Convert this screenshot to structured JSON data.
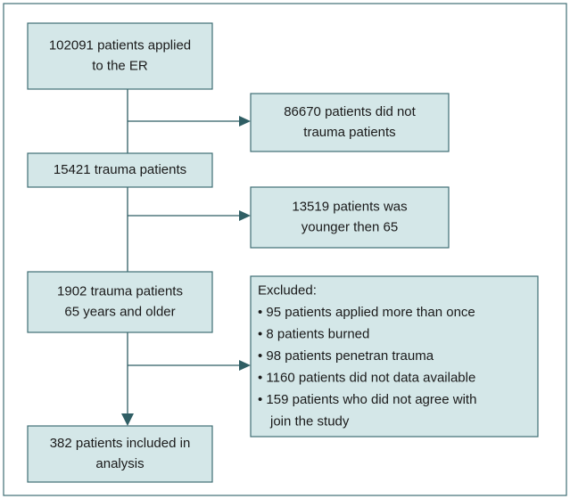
{
  "nodes": [
    {
      "lines": [
        "102091 patients applied",
        "to the ER"
      ]
    },
    {
      "lines": [
        "86670 patients did not",
        "trauma patients"
      ]
    },
    {
      "lines": [
        "15421 trauma patients"
      ]
    },
    {
      "lines": [
        "13519 patients was",
        "younger then 65"
      ]
    },
    {
      "lines": [
        "1902 trauma patients",
        "65 years and older"
      ]
    },
    {
      "lines": [
        "Excluded:",
        "• 95 patients applied more than once",
        "• 8 patients burned",
        "• 98 patients penetran trauma",
        "• 1160 patients did not data available",
        "• 159 patients who did not agree with",
        "join the study"
      ]
    },
    {
      "lines": [
        "382 patients included in",
        "analysis"
      ]
    }
  ]
}
